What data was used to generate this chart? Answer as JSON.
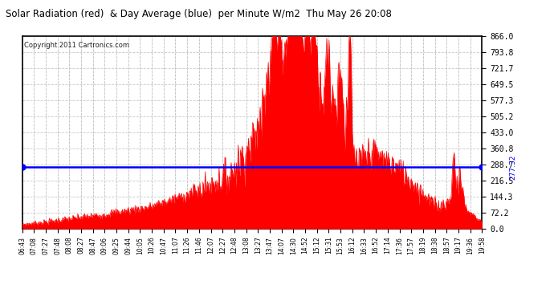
{
  "title": "Solar Radiation (red)  & Day Average (blue)  per Minute W/m2  Thu May 26 20:08",
  "copyright": "Copyright 2011 Cartronics.com",
  "avg_value": 277.32,
  "y_max": 866.0,
  "y_min": 0.0,
  "y_ticks": [
    0.0,
    72.2,
    144.3,
    216.5,
    288.7,
    360.8,
    433.0,
    505.2,
    577.3,
    649.5,
    721.7,
    793.8,
    866.0
  ],
  "x_tick_labels": [
    "06:43",
    "07:08",
    "07:27",
    "07:48",
    "08:08",
    "08:27",
    "08:47",
    "09:06",
    "09:25",
    "09:44",
    "10:05",
    "10:26",
    "10:47",
    "11:07",
    "11:26",
    "11:46",
    "12:07",
    "12:27",
    "12:48",
    "13:08",
    "13:27",
    "13:47",
    "14:07",
    "14:30",
    "14:52",
    "15:12",
    "15:31",
    "15:53",
    "16:12",
    "16:33",
    "16:52",
    "17:14",
    "17:36",
    "17:57",
    "18:19",
    "18:38",
    "18:57",
    "19:17",
    "19:36",
    "19:58"
  ],
  "background_color": "#ffffff",
  "plot_bg_color": "#ffffff",
  "fill_color": "#ff0000",
  "avg_line_color": "#0000ff",
  "grid_color": "#c8c8c8",
  "title_color": "#000000",
  "border_color": "#000000"
}
